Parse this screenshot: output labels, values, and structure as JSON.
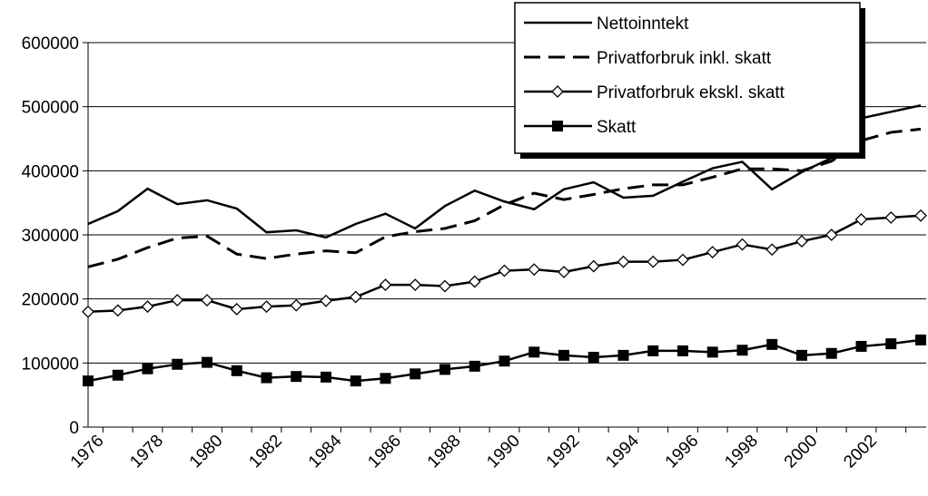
{
  "chart_data": {
    "type": "line",
    "categories": [
      "1976",
      null,
      "1978",
      null,
      "1980",
      null,
      "1982",
      null,
      "1984",
      null,
      "1986",
      null,
      "1988",
      null,
      "1990",
      null,
      "1992",
      null,
      "1994",
      null,
      "1996",
      null,
      "1998",
      null,
      "2000",
      null,
      "2002",
      null,
      null
    ],
    "series": [
      {
        "name": "Nettoinntekt",
        "color": "#000000",
        "style": "solid",
        "marker": "none",
        "values": [
          317000,
          337000,
          372000,
          348000,
          354000,
          341000,
          304000,
          307000,
          296000,
          317000,
          333000,
          310000,
          345000,
          369000,
          352000,
          340000,
          371000,
          382000,
          358000,
          361000,
          383000,
          404000,
          414000,
          371000,
          398000,
          420000,
          482000,
          492000,
          502000
        ]
      },
      {
        "name": "Privatforbruk inkl. skatt",
        "color": "#000000",
        "style": "dashed",
        "marker": "none",
        "values": [
          250000,
          262000,
          280000,
          295000,
          298000,
          270000,
          263000,
          270000,
          275000,
          272000,
          297000,
          305000,
          310000,
          322000,
          347000,
          365000,
          355000,
          363000,
          372000,
          378000,
          378000,
          390000,
          403000,
          403000,
          400000,
          415000,
          447000,
          460000,
          465000
        ]
      },
      {
        "name": "Privatforbruk ekskl. skatt",
        "color": "#000000",
        "style": "solid",
        "marker": "diamond",
        "values": [
          180000,
          182000,
          188000,
          198000,
          198000,
          184000,
          188000,
          190000,
          197000,
          203000,
          222000,
          222000,
          220000,
          227000,
          244000,
          246000,
          242000,
          251000,
          258000,
          258000,
          261000,
          273000,
          285000,
          277000,
          290000,
          300000,
          324000,
          327000,
          330000
        ]
      },
      {
        "name": "Skatt",
        "color": "#000000",
        "style": "solid",
        "marker": "square",
        "values": [
          72000,
          81000,
          91000,
          98000,
          101000,
          88000,
          77000,
          79000,
          78000,
          72000,
          76000,
          83000,
          90000,
          95000,
          103000,
          117000,
          112000,
          109000,
          112000,
          119000,
          119000,
          117000,
          120000,
          129000,
          112000,
          115000,
          126000,
          130000,
          136000
        ]
      }
    ],
    "ylim": [
      0,
      600000
    ],
    "yticks": [
      0,
      100000,
      200000,
      300000,
      400000,
      500000,
      600000
    ],
    "grid": true,
    "legend": "top-right"
  }
}
